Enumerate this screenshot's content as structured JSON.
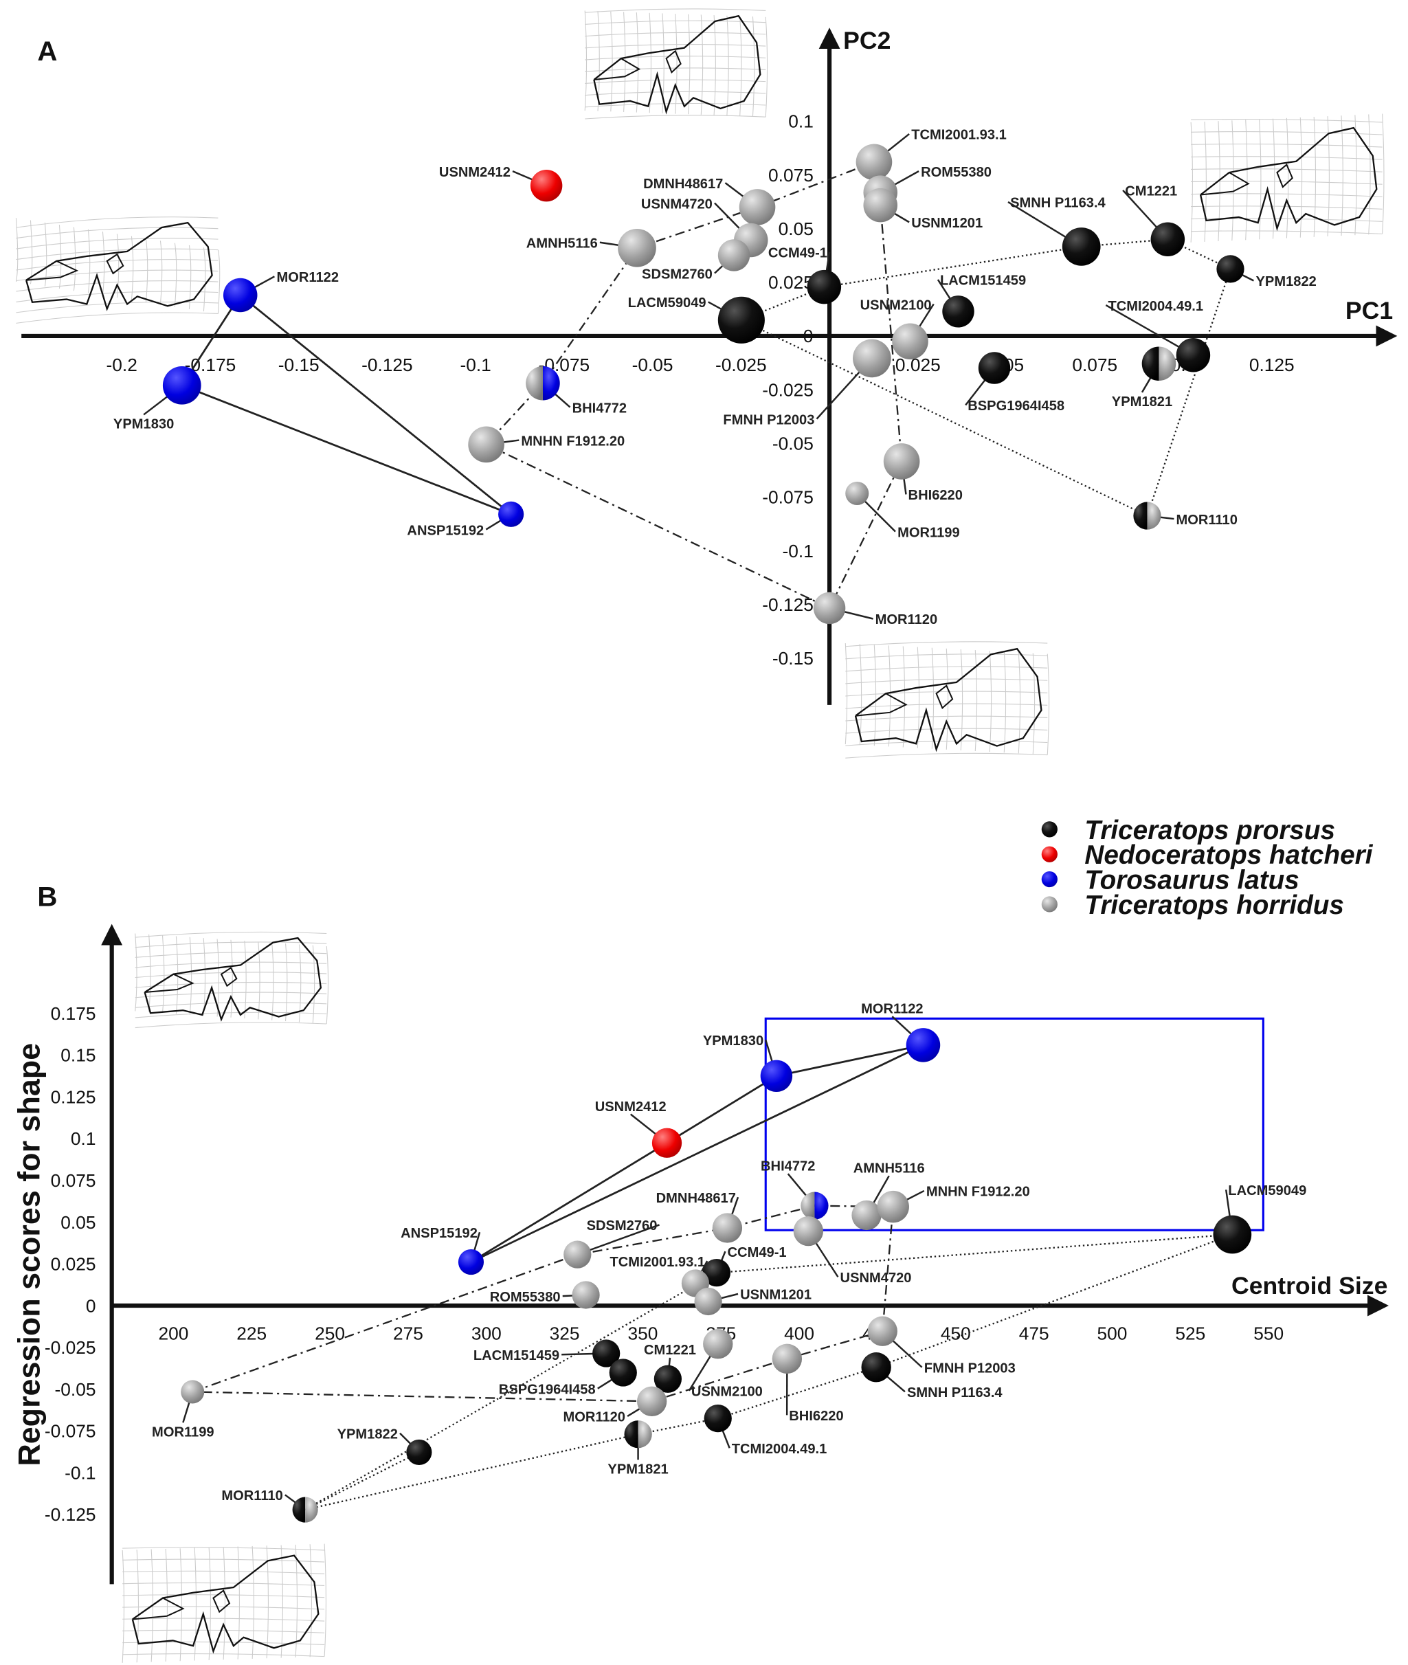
{
  "colors": {
    "prorsus": "#000000",
    "hatcheri": "#ee0000",
    "latus": "#0000e0",
    "horridus": "#999999",
    "box": "#0000ee"
  },
  "legend": [
    {
      "key": "prorsus",
      "label": "Triceratops prorsus"
    },
    {
      "key": "hatcheri",
      "label": "Nedoceratops hatcheri"
    },
    {
      "key": "latus",
      "label": "Torosaurus latus"
    },
    {
      "key": "horridus",
      "label": "Triceratops horridus"
    }
  ],
  "chart_data": [
    {
      "type": "scatter",
      "panel_label": "A",
      "xlabel": "PC1",
      "ylabel": "PC2",
      "xticks": [
        "-0.2",
        "-0.175",
        "-0.15",
        "-0.125",
        "-0.1",
        "-0.075",
        "-0.05",
        "-0.025",
        "0",
        "0.025",
        "0.05",
        "0.075",
        "0.1",
        "0.125"
      ],
      "yticks": [
        "0.1",
        "0.075",
        "0.05",
        "0.025",
        "0",
        "-0.025",
        "-0.05",
        "-0.075",
        "-0.1",
        "-0.125",
        "-0.15"
      ],
      "xlim": [
        -0.228,
        0.159
      ],
      "ylim": [
        -0.172,
        0.139
      ],
      "points": [
        {
          "id": "USNM2412",
          "species": "hatcheri",
          "x": -0.08,
          "y": 0.07
        },
        {
          "id": "MOR1122",
          "species": "latus",
          "x": -0.1665,
          "y": 0.019
        },
        {
          "id": "YPM1830",
          "species": "latus",
          "x": -0.183,
          "y": -0.023
        },
        {
          "id": "ANSP15192",
          "species": "latus",
          "x": -0.09,
          "y": -0.083
        },
        {
          "id": "BHI4772",
          "species": "horridus/latus",
          "x": -0.081,
          "y": -0.022
        },
        {
          "id": "MNHN F1912.20",
          "species": "horridus",
          "x": -0.097,
          "y": -0.0505
        },
        {
          "id": "AMNH5116",
          "species": "horridus",
          "x": -0.0544,
          "y": 0.041
        },
        {
          "id": "DMNH48617",
          "species": "horridus",
          "x": -0.0204,
          "y": 0.06
        },
        {
          "id": "USNM4720",
          "species": "horridus",
          "x": -0.0222,
          "y": 0.0446
        },
        {
          "id": "SDSM2760",
          "species": "horridus",
          "x": -0.027,
          "y": 0.0376
        },
        {
          "id": "LACM59049",
          "species": "prorsus",
          "x": -0.0249,
          "y": 0.0074
        },
        {
          "id": "CCM49-1",
          "species": "prorsus",
          "x": -0.0015,
          "y": 0.0228
        },
        {
          "id": "TCMI2001.93.1",
          "species": "horridus",
          "x": 0.0126,
          "y": 0.081
        },
        {
          "id": "ROM55380",
          "species": "horridus",
          "x": 0.0144,
          "y": 0.0668
        },
        {
          "id": "USNM1201",
          "species": "horridus",
          "x": 0.0144,
          "y": 0.0609
        },
        {
          "id": "USNM2100",
          "species": "horridus",
          "x": 0.0228,
          "y": -0.0025
        },
        {
          "id": "FMNH P12003",
          "species": "horridus",
          "x": 0.012,
          "y": -0.0104
        },
        {
          "id": "LACM151459",
          "species": "prorsus",
          "x": 0.0364,
          "y": 0.0114
        },
        {
          "id": "BSPG1964I458",
          "species": "prorsus",
          "x": 0.0466,
          "y": -0.0149
        },
        {
          "id": "SMNH P1163.4",
          "species": "prorsus",
          "x": 0.0712,
          "y": 0.0416
        },
        {
          "id": "CM1221",
          "species": "prorsus",
          "x": 0.0956,
          "y": 0.045
        },
        {
          "id": "YPM1822",
          "species": "prorsus",
          "x": 0.1133,
          "y": 0.0312
        },
        {
          "id": "TCMI2004.49.1",
          "species": "prorsus",
          "x": 0.1028,
          "y": -0.0089
        },
        {
          "id": "YPM1821",
          "species": "prorsus/horridus",
          "x": 0.0931,
          "y": -0.0129
        },
        {
          "id": "MOR1110",
          "species": "prorsus/horridus",
          "x": 0.0898,
          "y": -0.0837
        },
        {
          "id": "BHI6220",
          "species": "horridus",
          "x": 0.0204,
          "y": -0.0584
        },
        {
          "id": "MOR1199",
          "species": "horridus",
          "x": 0.0078,
          "y": -0.0733
        },
        {
          "id": "MOR1120",
          "species": "horridus",
          "x": 0.0,
          "y": -0.1267
        }
      ]
    },
    {
      "type": "scatter",
      "panel_label": "B",
      "xlabel": "Centroid Size",
      "ylabel": "Regression scores for shape",
      "xticks": [
        "200",
        "225",
        "250",
        "275",
        "300",
        "325",
        "350",
        "375",
        "400",
        "425",
        "450",
        "475",
        "500",
        "525",
        "550"
      ],
      "yticks": [
        "0.175",
        "0.15",
        "0.125",
        "0.1",
        "0.075",
        "0.05",
        "0.025",
        "0",
        "-0.025",
        "-0.05",
        "-0.075",
        "-0.1",
        "-0.125"
      ],
      "xlim": [
        180,
        585
      ],
      "ylim": [
        -0.166,
        0.225
      ],
      "points": [
        {
          "id": "MOR1122",
          "species": "latus",
          "x": 439.6,
          "y": 0.156
        },
        {
          "id": "YPM1830",
          "species": "latus",
          "x": 392.7,
          "y": 0.1375
        },
        {
          "id": "USNM2412",
          "species": "hatcheri",
          "x": 357.7,
          "y": 0.0974
        },
        {
          "id": "ANSP15192",
          "species": "latus",
          "x": 295.1,
          "y": 0.0261
        },
        {
          "id": "BHI4772",
          "species": "horridus/latus",
          "x": 404.9,
          "y": 0.0598
        },
        {
          "id": "AMNH5116",
          "species": "horridus",
          "x": 421.5,
          "y": 0.0541
        },
        {
          "id": "MNHN F1912.20",
          "species": "horridus",
          "x": 430,
          "y": 0.0592
        },
        {
          "id": "USNM4720",
          "species": "horridus",
          "x": 402.9,
          "y": 0.0446
        },
        {
          "id": "DMNH48617",
          "species": "horridus",
          "x": 377,
          "y": 0.0465
        },
        {
          "id": "SDSM2760",
          "species": "horridus",
          "x": 329.1,
          "y": 0.0306
        },
        {
          "id": "CCM49-1",
          "species": "prorsus",
          "x": 373.6,
          "y": 0.0197
        },
        {
          "id": "TCMI2001.93.1",
          "species": "horridus",
          "x": 366.8,
          "y": 0.0134
        },
        {
          "id": "USNM1201",
          "species": "horridus",
          "x": 370.9,
          "y": 0.0025
        },
        {
          "id": "ROM55380",
          "species": "horridus",
          "x": 331.8,
          "y": 0.0064
        },
        {
          "id": "LACM59049",
          "species": "prorsus",
          "x": 538.4,
          "y": 0.0426
        },
        {
          "id": "FMNH P12003",
          "species": "horridus",
          "x": 426.6,
          "y": -0.0153
        },
        {
          "id": "SMNH P1163.4",
          "species": "prorsus",
          "x": 424.6,
          "y": -0.0369
        },
        {
          "id": "LACM151459",
          "species": "prorsus",
          "x": 338.3,
          "y": -0.0286
        },
        {
          "id": "BSPG1964I458",
          "species": "prorsus",
          "x": 343.7,
          "y": -0.0401
        },
        {
          "id": "CM1221",
          "species": "prorsus",
          "x": 358,
          "y": -0.0439
        },
        {
          "id": "USNM2100",
          "species": "horridus",
          "x": 374,
          "y": -0.0229
        },
        {
          "id": "BHI6220",
          "species": "horridus",
          "x": 396.1,
          "y": -0.0318
        },
        {
          "id": "MOR1120",
          "species": "horridus",
          "x": 352.9,
          "y": -0.0573
        },
        {
          "id": "YPM1821",
          "species": "prorsus/horridus",
          "x": 348.5,
          "y": -0.077
        },
        {
          "id": "TCMI2004.49.1",
          "species": "prorsus",
          "x": 374,
          "y": -0.0675
        },
        {
          "id": "MOR1199",
          "species": "horridus",
          "x": 206.1,
          "y": -0.0516
        },
        {
          "id": "YPM1822",
          "species": "prorsus",
          "x": 278.5,
          "y": -0.0878
        },
        {
          "id": "MOR1110",
          "species": "prorsus/horridus",
          "x": 242.1,
          "y": -0.1222
        }
      ]
    }
  ]
}
